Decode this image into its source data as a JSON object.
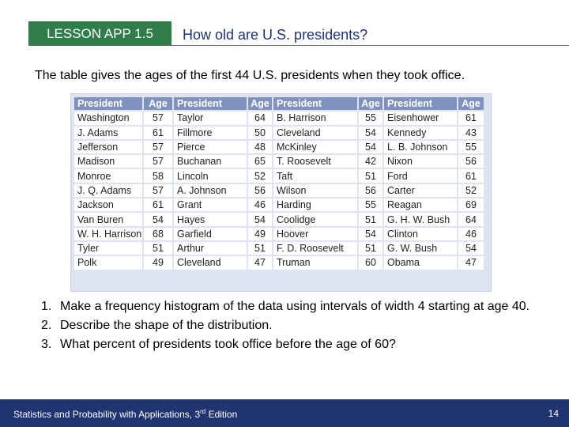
{
  "header": {
    "badge": "LESSON APP 1.5",
    "title": "How old are U.S. presidents?"
  },
  "intro": "The table gives the ages of the first 44 U.S. presidents when they took office.",
  "table": {
    "headers": [
      "President",
      "Age",
      "President",
      "Age",
      "President",
      "Age",
      "President",
      "Age"
    ],
    "rows": [
      [
        "Washington",
        "57",
        "Taylor",
        "64",
        "B. Harrison",
        "55",
        "Eisenhower",
        "61"
      ],
      [
        "J. Adams",
        "61",
        "Fillmore",
        "50",
        "Cleveland",
        "54",
        "Kennedy",
        "43"
      ],
      [
        "Jefferson",
        "57",
        "Pierce",
        "48",
        "McKinley",
        "54",
        "L. B. Johnson",
        "55"
      ],
      [
        "Madison",
        "57",
        "Buchanan",
        "65",
        "T. Roosevelt",
        "42",
        "Nixon",
        "56"
      ],
      [
        "Monroe",
        "58",
        "Lincoln",
        "52",
        "Taft",
        "51",
        "Ford",
        "61"
      ],
      [
        "J. Q. Adams",
        "57",
        "A. Johnson",
        "56",
        "Wilson",
        "56",
        "Carter",
        "52"
      ],
      [
        "Jackson",
        "61",
        "Grant",
        "46",
        "Harding",
        "55",
        "Reagan",
        "69"
      ],
      [
        "Van Buren",
        "54",
        "Hayes",
        "54",
        "Coolidge",
        "51",
        "G. H. W. Bush",
        "64"
      ],
      [
        "W. H. Harrison",
        "68",
        "Garfield",
        "49",
        "Hoover",
        "54",
        "Clinton",
        "46"
      ],
      [
        "Tyler",
        "51",
        "Arthur",
        "51",
        "F. D. Roosevelt",
        "51",
        "G. W. Bush",
        "54"
      ],
      [
        "Polk",
        "49",
        "Cleveland",
        "47",
        "Truman",
        "60",
        "Obama",
        "47"
      ]
    ]
  },
  "questions": [
    {
      "num": "1.",
      "text": "Make a frequency histogram of the data using intervals of width 4 starting at age 40."
    },
    {
      "num": "2.",
      "text": "Describe the shape of the distribution."
    },
    {
      "num": "3.",
      "text": "What percent of presidents took office before the age of 60?"
    }
  ],
  "footer": {
    "text_before": "Statistics and Probability with Applications, 3",
    "superscript": "rd",
    "text_after": " Edition",
    "page_number": "14"
  },
  "colors": {
    "badge_bg": "#2e7d4a",
    "title": "#1f3470",
    "table_header": "#7f91be",
    "table_bg": "#dde3f1",
    "footer_bg": "#1f3470"
  }
}
